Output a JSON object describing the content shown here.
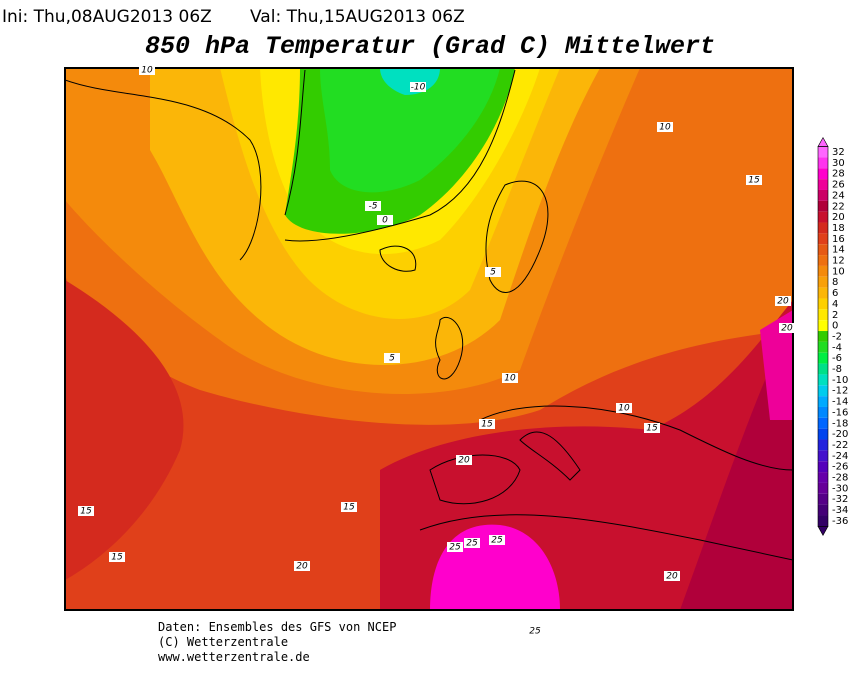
{
  "header": {
    "init": "Ini: Thu,08AUG2013 06Z",
    "valid": "Val: Thu,15AUG2013 06Z"
  },
  "title": "850 hPa Temperatur (Grad C) Mittelwert",
  "map": {
    "contour_labels": [
      10,
      -10,
      10,
      15,
      -5,
      0,
      5,
      20,
      20,
      5,
      10,
      10,
      15,
      15,
      20,
      15,
      15,
      15,
      20,
      25,
      25,
      25,
      20,
      25
    ]
  },
  "colorbar": {
    "levels": [
      32,
      30,
      28,
      26,
      24,
      22,
      20,
      18,
      16,
      14,
      12,
      10,
      8,
      6,
      4,
      2,
      0,
      -2,
      -4,
      -6,
      -8,
      -10,
      -12,
      -14,
      -16,
      -18,
      -20,
      -22,
      -24,
      -26,
      -28,
      -30,
      -32,
      -34,
      -36
    ],
    "colors": [
      "#ff66ff",
      "#ff33ee",
      "#ff00cc",
      "#ee0099",
      "#cc0066",
      "#b0003a",
      "#c8102e",
      "#d42a1e",
      "#e0401a",
      "#e65a14",
      "#ee7010",
      "#f48a0c",
      "#f8a00a",
      "#fbb608",
      "#fdd000",
      "#ffe800",
      "#ffff00",
      "#33cc00",
      "#22dd22",
      "#00ee44",
      "#00e088",
      "#00e0c0",
      "#00ccee",
      "#00aaff",
      "#0088ff",
      "#0066ff",
      "#0044ee",
      "#2222dd",
      "#4411cc",
      "#5500bb",
      "#6600aa",
      "#660099",
      "#550088",
      "#440077",
      "#330066"
    ]
  },
  "footer": [
    "Daten: Ensembles des GFS von NCEP",
    "(C) Wetterzentrale",
    "www.wetterzentrale.de"
  ]
}
